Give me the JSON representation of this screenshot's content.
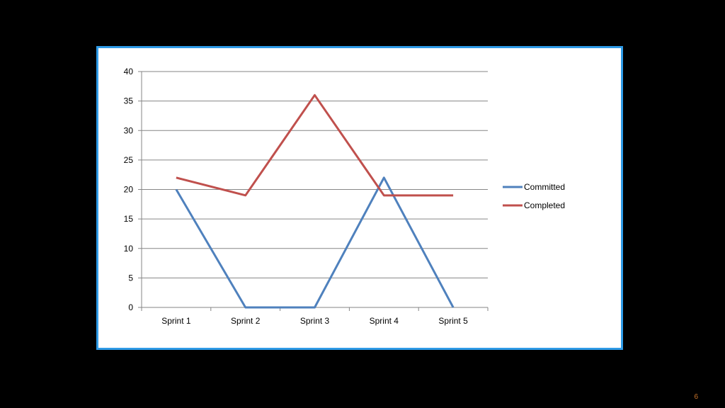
{
  "slide": {
    "page_number": "6",
    "frame_border_color": "#2e9ae6"
  },
  "chart_data": {
    "type": "line",
    "categories": [
      "Sprint 1",
      "Sprint 2",
      "Sprint 3",
      "Sprint 4",
      "Sprint 5"
    ],
    "series": [
      {
        "name": "Committed",
        "values": [
          20,
          0,
          0,
          22,
          0
        ],
        "color": "#4f81bd"
      },
      {
        "name": "Completed",
        "values": [
          22,
          19,
          36,
          19,
          19
        ],
        "color": "#c0504d"
      }
    ],
    "ylim": [
      0,
      40
    ],
    "yticks": [
      "0",
      "5",
      "10",
      "15",
      "20",
      "25",
      "30",
      "35",
      "40"
    ],
    "grid": true,
    "legend_position": "right"
  }
}
